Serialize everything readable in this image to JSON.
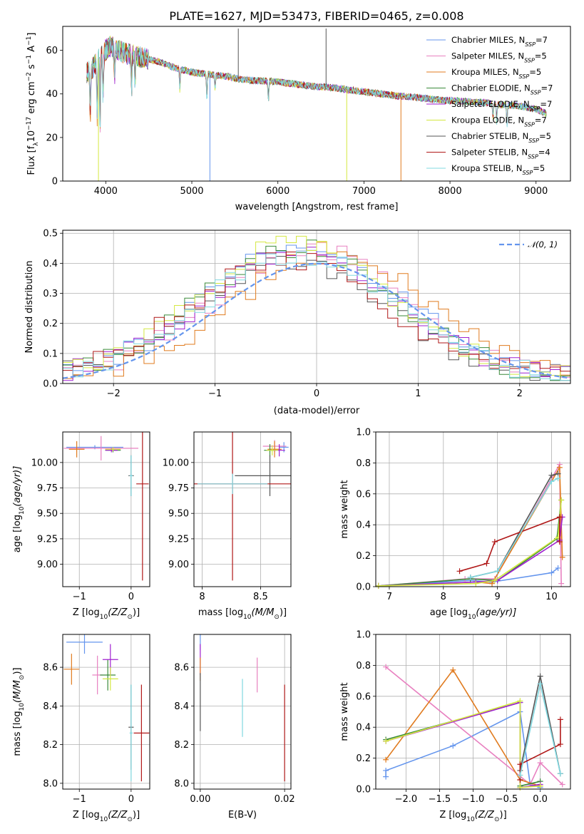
{
  "title": "PLATE=1627, MJD=53473, FIBERID=0465, z=0.008",
  "colors": {
    "c1": "#6495ed",
    "c2": "#e880c0",
    "c3": "#e07b1f",
    "c4": "#3a8a3a",
    "c5": "#a020d0",
    "c6": "#d4e840",
    "c7": "#555555",
    "c8": "#b01818",
    "c9": "#80d8e0",
    "gauss": "#6495ed"
  },
  "legend_spectrum": [
    {
      "label": "Chabrier MILES, N",
      "sub": "SSP",
      "suffix": "=7"
    },
    {
      "label": "Salpeter MILES, N",
      "sub": "SSP",
      "suffix": "=5"
    },
    {
      "label": "Kroupa MILES, N",
      "sub": "SSP",
      "suffix": "=5"
    },
    {
      "label": "Chabrier ELODIE, N",
      "sub": "SSP",
      "suffix": "=7"
    },
    {
      "label": "Salpeter ELODIE, N",
      "sub": "SSP",
      "suffix": "=7"
    },
    {
      "label": "Kroupa ELODIE, N",
      "sub": "SSP",
      "suffix": "=7"
    },
    {
      "label": "Chabrier STELIB, N",
      "sub": "SSP",
      "suffix": "=5"
    },
    {
      "label": "Salpeter STELIB, N",
      "sub": "SSP",
      "suffix": "=4"
    },
    {
      "label": "Kroupa STELIB, N",
      "sub": "SSP",
      "suffix": "=5"
    }
  ],
  "legend_hist": "𝒩(0, 1)",
  "chart_data": [
    {
      "id": "spectrum",
      "type": "line",
      "xlabel": "wavelength [Angstrom, rest frame]",
      "ylabel_main": "Flux [f",
      "ylabel_sub": "λ",
      "ylabel_mid": "10",
      "ylabel_sup1": "−17",
      "ylabel_rest1": " erg cm",
      "ylabel_sup2": "−2",
      "ylabel_rest2": " s",
      "ylabel_sup3": "−1",
      "ylabel_rest3": " A",
      "ylabel_sup4": "−1",
      "ylabel_end": "]",
      "xlim": [
        3500,
        9400
      ],
      "ylim": [
        0,
        71
      ],
      "xticks": [
        4000,
        5000,
        6000,
        7000,
        8000,
        9000
      ],
      "yticks": [
        0,
        20,
        40,
        60
      ],
      "envelope": {
        "x": [
          3780,
          3850,
          3950,
          4050,
          4200,
          4400,
          4600,
          4800,
          5000,
          5200,
          5400,
          5600,
          5800,
          6000,
          6200,
          6400,
          6600,
          6800,
          7000,
          7200,
          7400,
          7600,
          7800,
          8000,
          8200,
          8400,
          8600,
          8800,
          9000,
          9120
        ],
        "y": [
          50,
          52,
          58,
          62,
          59,
          57,
          55,
          52,
          50,
          49,
          48,
          46.5,
          46,
          45.5,
          44.5,
          43.5,
          43,
          42,
          41,
          40,
          39,
          38.5,
          37.5,
          37,
          36.5,
          36,
          35,
          34.5,
          33,
          31
        ]
      },
      "absorption_lines": [
        {
          "x": 3820,
          "depth": 22
        },
        {
          "x": 3900,
          "depth": 26
        },
        {
          "x": 3934,
          "depth": 36
        },
        {
          "x": 3969,
          "depth": 24
        },
        {
          "x": 4102,
          "depth": 14
        },
        {
          "x": 4300,
          "depth": 18
        },
        {
          "x": 4340,
          "depth": 12
        },
        {
          "x": 4861,
          "depth": 10
        },
        {
          "x": 5175,
          "depth": 12
        },
        {
          "x": 5270,
          "depth": 6
        },
        {
          "x": 5890,
          "depth": 9
        },
        {
          "x": 8500,
          "depth": 7
        },
        {
          "x": 8542,
          "depth": 10
        },
        {
          "x": 8662,
          "depth": 10
        }
      ],
      "artifacts": [
        {
          "x": 3915,
          "to": 0,
          "series": 5
        },
        {
          "x": 5210,
          "to": 0,
          "series": 0
        },
        {
          "x": 5540,
          "to": 70,
          "series": 6
        },
        {
          "x": 6560,
          "to": 70,
          "series": 6
        },
        {
          "x": 6800,
          "to": 0,
          "series": 5
        },
        {
          "x": 7430,
          "to": 0,
          "series": 2
        }
      ]
    },
    {
      "id": "residuals",
      "type": "step-histogram",
      "xlabel": "(data-model)/error",
      "ylabel": "Normed distribution",
      "xlim": [
        -2.5,
        2.5
      ],
      "ylim": [
        0,
        0.51
      ],
      "xticks": [
        -2,
        -1,
        0,
        1,
        2
      ],
      "yticks": [
        0.0,
        0.1,
        0.2,
        0.3,
        0.4,
        0.5
      ],
      "bin_width": 0.1,
      "gaussian": {
        "mu": 0,
        "sigma": 1,
        "label": "𝒩(0, 1)"
      },
      "series_shifts": [
        -0.12,
        -0.05,
        0.15,
        -0.2,
        -0.15,
        -0.22,
        -0.25,
        -0.3,
        -0.18
      ],
      "series_scale": [
        1.15,
        1.1,
        1.08,
        1.12,
        1.1,
        1.16,
        1.0,
        1.02,
        1.06
      ]
    },
    {
      "id": "age-vs-Z",
      "type": "errorbar",
      "xlabel": "Z [log",
      "xlabel_sub": "10",
      "xlabel_rest": "(Z/Z",
      "xlabel_sun": "⊙",
      "xlabel_end": ")]",
      "ylabel": "age  [log",
      "ylabel_sub": "10",
      "ylabel_rest": "(age/yr)]",
      "xlim": [
        -1.32,
        0.36
      ],
      "ylim": [
        8.78,
        10.3
      ],
      "xticks": [
        -1,
        0
      ],
      "yticks": [
        9.0,
        9.25,
        9.5,
        9.75,
        10.0
      ],
      "yticklabels": [
        "9.00",
        "9.25",
        "9.50",
        "9.75",
        "10.00"
      ],
      "points": [
        {
          "s": 0,
          "x": -0.7,
          "xe": 0.55,
          "y": 10.15,
          "ye": 0.02
        },
        {
          "s": 1,
          "x": -0.58,
          "xe": 0.72,
          "y": 10.14,
          "ye": 0.12
        },
        {
          "s": 2,
          "x": -1.05,
          "xe": 0.15,
          "y": 10.13,
          "ye": 0.08
        },
        {
          "s": 3,
          "x": -0.35,
          "xe": 0.15,
          "y": 10.12,
          "ye": 0.02
        },
        {
          "s": 4,
          "x": -0.38,
          "xe": 0.12,
          "y": 10.12,
          "ye": 0.02
        },
        {
          "s": 5,
          "x": -0.35,
          "xe": 0.15,
          "y": 10.13,
          "ye": 0.02
        },
        {
          "s": 6,
          "x": 0.0,
          "xe": 0.05,
          "y": 9.87,
          "ye": 0.2
        },
        {
          "s": 7,
          "x": 0.22,
          "xe": 0.12,
          "y": 9.79,
          "ye": 0.95
        },
        {
          "s": 8,
          "x": 0.0,
          "xe": 0.03,
          "y": 9.87,
          "ye": 0.2
        }
      ]
    },
    {
      "id": "age-vs-mass",
      "type": "errorbar",
      "xlabel": "mass [log",
      "xlabel_sub": "10",
      "xlabel_rest": "(M/M",
      "xlabel_sun": "⊙",
      "xlabel_end": ")]",
      "xlim": [
        7.93,
        8.76
      ],
      "ylim": [
        8.78,
        10.3
      ],
      "xticks": [
        8.0,
        8.5
      ],
      "yticks": [
        9.0,
        9.25,
        9.5,
        9.75,
        10.0
      ],
      "yticklabels": [
        "9.00",
        "9.25",
        "9.50",
        "9.75",
        "10.00"
      ],
      "points": [
        {
          "s": 0,
          "x": 8.7,
          "xe": 0.04,
          "y": 10.15,
          "ye": 0.05
        },
        {
          "s": 1,
          "x": 8.62,
          "xe": 0.1,
          "y": 10.16,
          "ye": 0.06
        },
        {
          "s": 2,
          "x": 8.62,
          "xe": 0.06,
          "y": 10.13,
          "ye": 0.08
        },
        {
          "s": 3,
          "x": 8.58,
          "xe": 0.05,
          "y": 10.12,
          "ye": 0.06
        },
        {
          "s": 4,
          "x": 8.66,
          "xe": 0.05,
          "y": 10.12,
          "ye": 0.06
        },
        {
          "s": 5,
          "x": 8.6,
          "xe": 0.05,
          "y": 10.12,
          "ye": 0.05
        },
        {
          "s": 6,
          "x": 8.58,
          "xe": 0.3,
          "y": 9.87,
          "ye": 0.2
        },
        {
          "s": 7,
          "x": 8.26,
          "xe": 0.52,
          "y": 9.79,
          "ye": 0.95
        },
        {
          "s": 8,
          "x": 8.26,
          "xe": 0.3,
          "y": 9.79,
          "ye": 0.1
        }
      ]
    },
    {
      "id": "weight-vs-age",
      "type": "line",
      "xlabel": "age  [log",
      "xlabel_sub": "10",
      "xlabel_rest": "(age/yr)]",
      "ylabel": "mass weight",
      "xlim": [
        6.75,
        10.35
      ],
      "ylim": [
        0,
        1.0
      ],
      "xticks": [
        7,
        8,
        9,
        10
      ],
      "yticks": [
        0.0,
        0.2,
        0.4,
        0.6,
        0.8,
        1.0
      ],
      "series": [
        {
          "s": 0,
          "x": [
            6.8,
            8.5,
            8.9,
            10.0,
            10.12
          ],
          "y": [
            0.005,
            0.04,
            0.03,
            0.09,
            0.12
          ]
        },
        {
          "s": 1,
          "x": [
            6.8,
            8.4,
            8.95,
            10.15,
            10.18
          ],
          "y": [
            0.005,
            0.05,
            0.05,
            0.79,
            0.02
          ]
        },
        {
          "s": 2,
          "x": [
            6.8,
            8.6,
            8.9,
            10.15,
            10.2
          ],
          "y": [
            0.005,
            0.03,
            0.02,
            0.77,
            0.19
          ]
        },
        {
          "s": 3,
          "x": [
            6.8,
            8.5,
            9.0,
            10.1,
            10.18
          ],
          "y": [
            0.005,
            0.05,
            0.04,
            0.31,
            0.56
          ]
        },
        {
          "s": 4,
          "x": [
            6.8,
            8.6,
            9.0,
            10.15,
            10.2
          ],
          "y": [
            0.005,
            0.03,
            0.04,
            0.3,
            0.45
          ]
        },
        {
          "s": 5,
          "x": [
            6.8,
            8.6,
            8.95,
            10.12,
            10.18
          ],
          "y": [
            0.005,
            0.02,
            0.04,
            0.32,
            0.56
          ]
        },
        {
          "s": 6,
          "x": [
            8.5,
            9.0,
            10.0,
            10.12
          ],
          "y": [
            0.06,
            0.1,
            0.72,
            0.73
          ]
        },
        {
          "s": 7,
          "x": [
            8.3,
            8.8,
            8.95,
            10.15,
            10.15
          ],
          "y": [
            0.1,
            0.15,
            0.29,
            0.45,
            0.29
          ]
        },
        {
          "s": 8,
          "x": [
            8.5,
            9.0,
            10.0,
            10.12
          ],
          "y": [
            0.06,
            0.1,
            0.68,
            0.7
          ]
        }
      ]
    },
    {
      "id": "mass-vs-Z",
      "type": "errorbar",
      "xlabel": "Z [log",
      "xlabel_sub": "10",
      "xlabel_rest": "(Z/Z",
      "xlabel_sun": "⊙",
      "xlabel_end": ")]",
      "ylabel": "mass [log",
      "ylabel_sub": "10",
      "ylabel_rest": "(M/M",
      "ylabel_sun": "⊙",
      "ylabel_end": ")]",
      "xlim": [
        -1.32,
        0.36
      ],
      "ylim": [
        7.97,
        8.77
      ],
      "xticks": [
        -1,
        0
      ],
      "yticks": [
        8.0,
        8.2,
        8.4,
        8.6
      ],
      "yticklabels": [
        "8.0",
        "8.2",
        "8.4",
        "8.6"
      ],
      "points": [
        {
          "s": 0,
          "x": -0.9,
          "xe": 0.35,
          "y": 8.73,
          "ye": 0.06
        },
        {
          "s": 1,
          "x": -0.65,
          "xe": 0.1,
          "y": 8.56,
          "ye": 0.1
        },
        {
          "s": 2,
          "x": -1.15,
          "xe": 0.15,
          "y": 8.59,
          "ye": 0.08
        },
        {
          "s": 3,
          "x": -0.45,
          "xe": 0.15,
          "y": 8.56,
          "ye": 0.08
        },
        {
          "s": 4,
          "x": -0.4,
          "xe": 0.15,
          "y": 8.64,
          "ye": 0.08
        },
        {
          "s": 5,
          "x": -0.4,
          "xe": 0.15,
          "y": 8.54,
          "ye": 0.06
        },
        {
          "s": 6,
          "x": 0.0,
          "xe": 0.05,
          "y": 8.29,
          "ye": 0.22
        },
        {
          "s": 7,
          "x": 0.2,
          "xe": 0.15,
          "y": 8.26,
          "ye": 0.25
        },
        {
          "s": 8,
          "x": 0.0,
          "xe": 0.03,
          "y": 8.26,
          "ye": 0.25
        }
      ]
    },
    {
      "id": "mass-vs-EBV",
      "type": "errorbar",
      "xlabel": "E(B-V)",
      "xlim": [
        -0.0015,
        0.0215
      ],
      "ylim": [
        7.97,
        8.77
      ],
      "xticks": [
        0.0,
        0.02
      ],
      "xticklabels": [
        "0.00",
        "0.02"
      ],
      "yticks": [
        8.0,
        8.2,
        8.4,
        8.6
      ],
      "yticklabels": [
        "8.0",
        "8.2",
        "8.4",
        "8.6"
      ],
      "points": [
        {
          "s": 0,
          "x": 0.0,
          "xe": 0.0,
          "y": 8.73,
          "ye": 0.04
        },
        {
          "s": 4,
          "x": 0.0,
          "xe": 0.0,
          "y": 8.64,
          "ye": 0.08
        },
        {
          "s": 2,
          "x": 0.0,
          "xe": 0.0,
          "y": 8.59,
          "ye": 0.06
        },
        {
          "s": 6,
          "x": 0.0,
          "xe": 0.0,
          "y": 8.42,
          "ye": 0.15
        },
        {
          "s": 8,
          "x": 0.01,
          "xe": 0.0,
          "y": 8.39,
          "ye": 0.15
        },
        {
          "s": 1,
          "x": 0.0135,
          "xe": 0.0,
          "y": 8.56,
          "ye": 0.09
        },
        {
          "s": 7,
          "x": 0.02,
          "xe": 0.0,
          "y": 8.26,
          "ye": 0.25
        }
      ]
    },
    {
      "id": "weight-vs-Z",
      "type": "line",
      "xlabel": "Z [log",
      "xlabel_sub": "10",
      "xlabel_rest": "(Z/Z",
      "xlabel_sun": "⊙",
      "xlabel_end": ")]",
      "ylabel": "mass weight",
      "xlim": [
        -2.45,
        0.45
      ],
      "ylim": [
        0,
        1.0
      ],
      "xticks": [
        -2.0,
        -1.5,
        -1.0,
        -0.5,
        0.0
      ],
      "xticklabels": [
        "−2.0",
        "−1.5",
        "−1.0",
        "−0.5",
        "0.0"
      ],
      "yticks": [
        0.0,
        0.2,
        0.4,
        0.6,
        0.8,
        1.0
      ],
      "series": [
        {
          "s": 0,
          "x": [
            -2.3,
            -2.3,
            -1.3,
            -0.3,
            -0.15,
            0.0
          ],
          "y": [
            0.08,
            0.12,
            0.28,
            0.5,
            0.03,
            0.01
          ]
        },
        {
          "s": 1,
          "x": [
            -2.3,
            -0.15,
            0.0,
            0.33
          ],
          "y": [
            0.79,
            0.03,
            0.17,
            0.03
          ]
        },
        {
          "s": 2,
          "x": [
            -2.3,
            -1.3,
            -0.3,
            0.0
          ],
          "y": [
            0.19,
            0.77,
            0.06,
            0.02
          ]
        },
        {
          "s": 3,
          "x": [
            -2.3,
            -0.3,
            -0.3,
            0.0
          ],
          "y": [
            0.32,
            0.56,
            0.02,
            0.05
          ]
        },
        {
          "s": 4,
          "x": [
            -2.3,
            -0.3,
            -0.3,
            0.0
          ],
          "y": [
            0.31,
            0.56,
            0.01,
            0.03
          ]
        },
        {
          "s": 5,
          "x": [
            -2.3,
            -0.3,
            -0.3,
            0.0
          ],
          "y": [
            0.31,
            0.57,
            0.01,
            0.02
          ]
        },
        {
          "s": 6,
          "x": [
            -0.3,
            0.0,
            0.3
          ],
          "y": [
            0.12,
            0.73,
            0.1
          ]
        },
        {
          "s": 7,
          "x": [
            -0.3,
            -0.3,
            0.3,
            0.3
          ],
          "y": [
            0.06,
            0.16,
            0.29,
            0.45
          ]
        },
        {
          "s": 8,
          "x": [
            -0.3,
            0.0,
            0.3
          ],
          "y": [
            0.09,
            0.68,
            0.1
          ]
        }
      ]
    }
  ]
}
